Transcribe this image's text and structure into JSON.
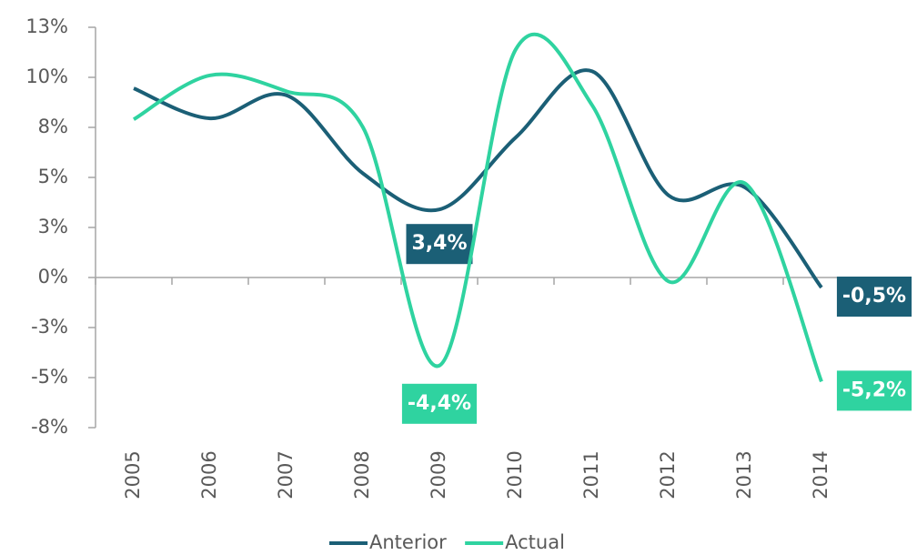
{
  "chart_data": {
    "type": "line",
    "categories": [
      "2005",
      "2006",
      "2007",
      "2008",
      "2009",
      "2010",
      "2011",
      "2012",
      "2013",
      "2014"
    ],
    "series": [
      {
        "name": "Anterior",
        "color": "#1b5f76",
        "values": [
          9.45,
          7.95,
          9.1,
          5.2,
          3.4,
          7.0,
          10.3,
          4.1,
          4.5,
          -0.5
        ],
        "value_labels": [
          null,
          null,
          null,
          null,
          "3,4%",
          null,
          null,
          null,
          null,
          "-0,5%"
        ]
      },
      {
        "name": "Actual",
        "color": "#2fd3a0",
        "values": [
          7.9,
          10.1,
          9.3,
          7.5,
          -4.4,
          11.4,
          8.6,
          -0.2,
          4.7,
          -5.2
        ],
        "value_labels": [
          null,
          null,
          null,
          null,
          "-4,4%",
          null,
          null,
          null,
          null,
          "-5,2%"
        ]
      }
    ],
    "ylim": [
      -7.5,
      12.5
    ],
    "yticks": [
      {
        "value": 12.5,
        "label": "13%"
      },
      {
        "value": 10,
        "label": "10%"
      },
      {
        "value": 7.5,
        "label": "8%"
      },
      {
        "value": 5,
        "label": "5%"
      },
      {
        "value": 2.5,
        "label": "3%"
      },
      {
        "value": 0,
        "label": "0%"
      },
      {
        "value": -2.5,
        "label": "-3%"
      },
      {
        "value": -5,
        "label": "-5%"
      },
      {
        "value": -7.5,
        "label": "-8%"
      }
    ],
    "legend": "bottom"
  }
}
